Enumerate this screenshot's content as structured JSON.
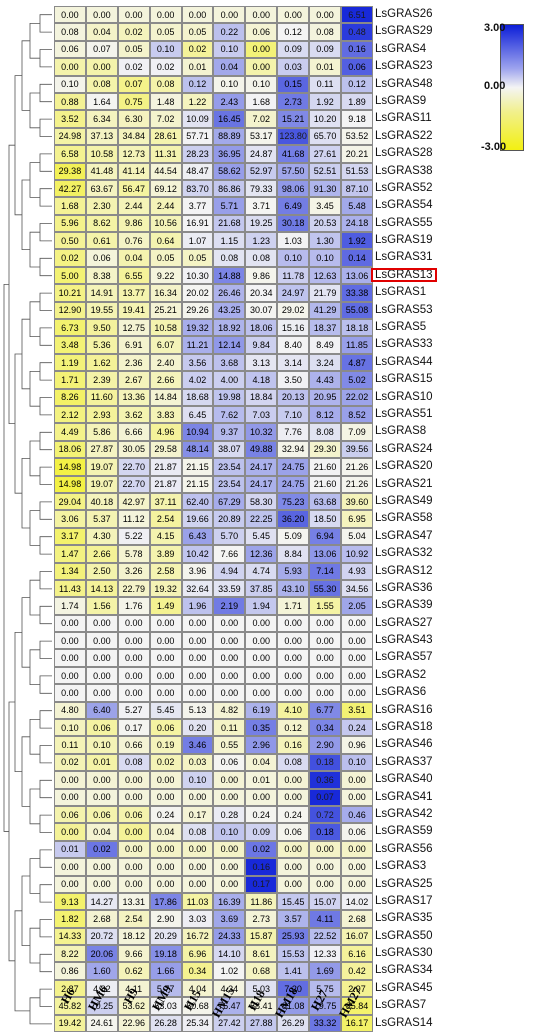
{
  "chart_data": {
    "type": "heatmap",
    "columns": [
      "H6",
      "HM6",
      "H9",
      "HM9",
      "H15",
      "HM15",
      "H18",
      "HM18",
      "H27",
      "HM27"
    ],
    "rows": [
      {
        "name": "LsGRAS26",
        "values": [
          "0.00",
          "0.00",
          "0.00",
          "0.00",
          "0.00",
          "0.00",
          "0.00",
          "0.00",
          "0.00",
          "6.51"
        ]
      },
      {
        "name": "LsGRAS29",
        "values": [
          "0.08",
          "0.04",
          "0.02",
          "0.05",
          "0.05",
          "0.22",
          "0.06",
          "0.12",
          "0.08",
          "0.48"
        ]
      },
      {
        "name": "LsGRAS4",
        "values": [
          "0.06",
          "0.07",
          "0.05",
          "0.10",
          "0.02",
          "0.10",
          "0.00",
          "0.09",
          "0.09",
          "0.16"
        ]
      },
      {
        "name": "LsGRAS23",
        "values": [
          "0.00",
          "0.00",
          "0.02",
          "0.02",
          "0.01",
          "0.04",
          "0.00",
          "0.03",
          "0.01",
          "0.06"
        ]
      },
      {
        "name": "LsGRAS48",
        "values": [
          "0.10",
          "0.08",
          "0.07",
          "0.08",
          "0.12",
          "0.10",
          "0.10",
          "0.15",
          "0.11",
          "0.12"
        ]
      },
      {
        "name": "LsGRAS9",
        "values": [
          "0.88",
          "1.64",
          "0.75",
          "1.48",
          "1.22",
          "2.43",
          "1.68",
          "2.73",
          "1.92",
          "1.89"
        ]
      },
      {
        "name": "LsGRAS11",
        "values": [
          "3.52",
          "6.34",
          "6.30",
          "7.02",
          "10.09",
          "16.45",
          "7.02",
          "15.21",
          "10.20",
          "9.18"
        ]
      },
      {
        "name": "LsGRAS22",
        "values": [
          "24.98",
          "37.13",
          "34.84",
          "28.61",
          "57.71",
          "88.89",
          "53.17",
          "123.80",
          "65.70",
          "53.52"
        ]
      },
      {
        "name": "LsGRAS28",
        "values": [
          "6.58",
          "10.58",
          "12.73",
          "11.31",
          "28.23",
          "36.95",
          "24.87",
          "41.68",
          "27.61",
          "20.21"
        ]
      },
      {
        "name": "LsGRAS38",
        "values": [
          "29.38",
          "41.48",
          "41.14",
          "44.54",
          "48.47",
          "58.62",
          "52.97",
          "57.50",
          "52.51",
          "51.53"
        ]
      },
      {
        "name": "LsGRAS52",
        "values": [
          "42.27",
          "63.67",
          "56.47",
          "69.12",
          "83.70",
          "86.86",
          "79.33",
          "98.06",
          "91.30",
          "87.10"
        ]
      },
      {
        "name": "LsGRAS54",
        "values": [
          "1.68",
          "2.30",
          "2.44",
          "2.44",
          "3.77",
          "5.71",
          "3.71",
          "6.49",
          "3.45",
          "5.48"
        ]
      },
      {
        "name": "LsGRAS55",
        "values": [
          "5.96",
          "8.62",
          "9.86",
          "10.56",
          "16.91",
          "21.68",
          "19.25",
          "30.18",
          "20.53",
          "24.18"
        ]
      },
      {
        "name": "LsGRAS19",
        "values": [
          "0.50",
          "0.61",
          "0.76",
          "0.64",
          "1.07",
          "1.15",
          "1.23",
          "1.03",
          "1.30",
          "1.92"
        ]
      },
      {
        "name": "LsGRAS31",
        "values": [
          "0.02",
          "0.06",
          "0.04",
          "0.05",
          "0.05",
          "0.08",
          "0.08",
          "0.10",
          "0.10",
          "0.14"
        ]
      },
      {
        "name": "LsGRAS13",
        "values": [
          "5.00",
          "8.38",
          "6.55",
          "9.22",
          "10.30",
          "14.88",
          "9.86",
          "11.78",
          "12.63",
          "13.06"
        ]
      },
      {
        "name": "LsGRAS1",
        "values": [
          "10.21",
          "14.91",
          "13.77",
          "16.34",
          "20.02",
          "26.46",
          "20.34",
          "24.97",
          "21.79",
          "33.38"
        ]
      },
      {
        "name": "LsGRAS53",
        "values": [
          "12.90",
          "19.55",
          "19.41",
          "25.21",
          "29.26",
          "43.25",
          "30.07",
          "29.02",
          "41.29",
          "55.08"
        ]
      },
      {
        "name": "LsGRAS5",
        "values": [
          "6.73",
          "9.50",
          "12.75",
          "10.58",
          "19.32",
          "18.92",
          "18.06",
          "15.16",
          "18.37",
          "18.18"
        ]
      },
      {
        "name": "LsGRAS33",
        "values": [
          "3.48",
          "5.36",
          "6.91",
          "6.07",
          "11.21",
          "12.14",
          "9.84",
          "8.40",
          "8.49",
          "11.85"
        ]
      },
      {
        "name": "LsGRAS44",
        "values": [
          "1.19",
          "1.62",
          "2.36",
          "2.40",
          "3.56",
          "3.68",
          "3.13",
          "3.14",
          "3.24",
          "4.87"
        ]
      },
      {
        "name": "LsGRAS15",
        "values": [
          "1.71",
          "2.39",
          "2.67",
          "2.66",
          "4.02",
          "4.00",
          "4.18",
          "3.50",
          "4.43",
          "5.02"
        ]
      },
      {
        "name": "LsGRAS10",
        "values": [
          "8.26",
          "11.60",
          "13.36",
          "14.84",
          "18.68",
          "19.98",
          "18.84",
          "20.13",
          "20.95",
          "22.02"
        ]
      },
      {
        "name": "LsGRAS51",
        "values": [
          "2.12",
          "2.93",
          "3.62",
          "3.83",
          "6.45",
          "7.62",
          "7.03",
          "7.10",
          "8.12",
          "8.52"
        ]
      },
      {
        "name": "LsGRAS8",
        "values": [
          "4.49",
          "5.86",
          "6.66",
          "4.96",
          "10.94",
          "9.37",
          "10.32",
          "7.76",
          "8.08",
          "7.09"
        ]
      },
      {
        "name": "LsGRAS24",
        "values": [
          "18.06",
          "27.87",
          "30.05",
          "29.58",
          "48.14",
          "38.07",
          "49.88",
          "32.94",
          "29.30",
          "39.56"
        ]
      },
      {
        "name": "LsGRAS20",
        "values": [
          "14.98",
          "19.07",
          "22.70",
          "21.87",
          "21.15",
          "23.54",
          "24.17",
          "24.75",
          "21.60",
          "21.26"
        ]
      },
      {
        "name": "LsGRAS21",
        "values": [
          "14.98",
          "19.07",
          "22.70",
          "21.87",
          "21.15",
          "23.54",
          "24.17",
          "24.75",
          "21.60",
          "21.26"
        ]
      },
      {
        "name": "LsGRAS49",
        "values": [
          "29.04",
          "40.18",
          "42.97",
          "37.11",
          "62.40",
          "67.29",
          "58.30",
          "75.23",
          "63.68",
          "39.60"
        ]
      },
      {
        "name": "LsGRAS58",
        "values": [
          "3.06",
          "5.37",
          "11.12",
          "2.54",
          "19.66",
          "20.89",
          "22.25",
          "36.20",
          "18.50",
          "6.95"
        ]
      },
      {
        "name": "LsGRAS47",
        "values": [
          "3.17",
          "4.30",
          "5.22",
          "4.15",
          "6.43",
          "5.70",
          "5.45",
          "5.09",
          "6.94",
          "5.04"
        ]
      },
      {
        "name": "LsGRAS32",
        "values": [
          "1.47",
          "2.66",
          "5.78",
          "3.89",
          "10.42",
          "7.66",
          "12.36",
          "8.84",
          "13.06",
          "10.92"
        ]
      },
      {
        "name": "LsGRAS12",
        "values": [
          "1.34",
          "2.50",
          "3.26",
          "2.58",
          "3.96",
          "4.94",
          "4.74",
          "5.93",
          "7.14",
          "4.93"
        ]
      },
      {
        "name": "LsGRAS36",
        "values": [
          "11.43",
          "14.13",
          "22.79",
          "19.32",
          "32.64",
          "33.59",
          "37.85",
          "43.10",
          "55.30",
          "34.56"
        ]
      },
      {
        "name": "LsGRAS39",
        "values": [
          "1.74",
          "1.56",
          "1.76",
          "1.49",
          "1.96",
          "2.19",
          "1.94",
          "1.71",
          "1.55",
          "2.05"
        ]
      },
      {
        "name": "LsGRAS27",
        "values": [
          "0.00",
          "0.00",
          "0.00",
          "0.00",
          "0.00",
          "0.00",
          "0.00",
          "0.00",
          "0.00",
          "0.00"
        ]
      },
      {
        "name": "LsGRAS43",
        "values": [
          "0.00",
          "0.00",
          "0.00",
          "0.00",
          "0.00",
          "0.00",
          "0.00",
          "0.00",
          "0.00",
          "0.00"
        ]
      },
      {
        "name": "LsGRAS57",
        "values": [
          "0.00",
          "0.00",
          "0.00",
          "0.00",
          "0.00",
          "0.00",
          "0.00",
          "0.00",
          "0.00",
          "0.00"
        ]
      },
      {
        "name": "LsGRAS2",
        "values": [
          "0.00",
          "0.00",
          "0.00",
          "0.00",
          "0.00",
          "0.00",
          "0.00",
          "0.00",
          "0.00",
          "0.00"
        ]
      },
      {
        "name": "LsGRAS6",
        "values": [
          "0.00",
          "0.00",
          "0.00",
          "0.00",
          "0.00",
          "0.00",
          "0.00",
          "0.00",
          "0.00",
          "0.00"
        ]
      },
      {
        "name": "LsGRAS16",
        "values": [
          "4.80",
          "6.40",
          "5.27",
          "5.45",
          "5.13",
          "4.82",
          "6.19",
          "4.10",
          "6.77",
          "3.51"
        ]
      },
      {
        "name": "LsGRAS18",
        "values": [
          "0.10",
          "0.06",
          "0.17",
          "0.06",
          "0.20",
          "0.11",
          "0.35",
          "0.12",
          "0.34",
          "0.24"
        ]
      },
      {
        "name": "LsGRAS46",
        "values": [
          "0.11",
          "0.10",
          "0.66",
          "0.19",
          "3.46",
          "0.55",
          "2.96",
          "0.16",
          "2.90",
          "0.96"
        ]
      },
      {
        "name": "LsGRAS37",
        "values": [
          "0.02",
          "0.01",
          "0.08",
          "0.02",
          "0.03",
          "0.06",
          "0.04",
          "0.08",
          "0.18",
          "0.10"
        ]
      },
      {
        "name": "LsGRAS40",
        "values": [
          "0.00",
          "0.00",
          "0.00",
          "0.00",
          "0.10",
          "0.00",
          "0.01",
          "0.00",
          "0.36",
          "0.00"
        ]
      },
      {
        "name": "LsGRAS41",
        "values": [
          "0.00",
          "0.00",
          "0.00",
          "0.00",
          "0.00",
          "0.00",
          "0.00",
          "0.00",
          "0.07",
          "0.00"
        ]
      },
      {
        "name": "LsGRAS42",
        "values": [
          "0.06",
          "0.06",
          "0.06",
          "0.24",
          "0.17",
          "0.28",
          "0.24",
          "0.24",
          "0.72",
          "0.46"
        ]
      },
      {
        "name": "LsGRAS59",
        "values": [
          "0.00",
          "0.04",
          "0.00",
          "0.04",
          "0.08",
          "0.10",
          "0.09",
          "0.06",
          "0.18",
          "0.06"
        ]
      },
      {
        "name": "LsGRAS56",
        "values": [
          "0.01",
          "0.02",
          "0.00",
          "0.00",
          "0.00",
          "0.00",
          "0.02",
          "0.00",
          "0.00",
          "0.00"
        ]
      },
      {
        "name": "LsGRAS3",
        "values": [
          "0.00",
          "0.00",
          "0.00",
          "0.00",
          "0.00",
          "0.00",
          "0.16",
          "0.00",
          "0.00",
          "0.00"
        ]
      },
      {
        "name": "LsGRAS25",
        "values": [
          "0.00",
          "0.00",
          "0.00",
          "0.00",
          "0.00",
          "0.00",
          "0.17",
          "0.00",
          "0.00",
          "0.00"
        ]
      },
      {
        "name": "LsGRAS17",
        "values": [
          "9.13",
          "14.27",
          "13.31",
          "17.86",
          "11.03",
          "16.39",
          "11.86",
          "15.45",
          "15.07",
          "14.02"
        ]
      },
      {
        "name": "LsGRAS35",
        "values": [
          "1.82",
          "2.68",
          "2.54",
          "2.90",
          "3.03",
          "3.69",
          "2.73",
          "3.57",
          "4.11",
          "2.68"
        ]
      },
      {
        "name": "LsGRAS50",
        "values": [
          "14.33",
          "20.72",
          "18.12",
          "20.29",
          "16.72",
          "24.33",
          "15.87",
          "25.93",
          "22.52",
          "16.07"
        ]
      },
      {
        "name": "LsGRAS30",
        "values": [
          "8.22",
          "20.06",
          "9.66",
          "19.18",
          "6.96",
          "14.10",
          "8.61",
          "15.53",
          "12.33",
          "6.16"
        ]
      },
      {
        "name": "LsGRAS34",
        "values": [
          "0.86",
          "1.60",
          "0.62",
          "1.66",
          "0.34",
          "1.02",
          "0.68",
          "1.41",
          "1.69",
          "0.42"
        ]
      },
      {
        "name": "LsGRAS45",
        "values": [
          "2.87",
          "4.82",
          "4.11",
          "5.77",
          "4.04",
          "4.34",
          "5.03",
          "7.20",
          "5.75",
          "2.97"
        ]
      },
      {
        "name": "LsGRAS7",
        "values": [
          "45.82",
          "70.25",
          "53.62",
          "63.03",
          "60.68",
          "76.47",
          "58.41",
          "81.08",
          "79.75",
          "35.84"
        ]
      },
      {
        "name": "LsGRAS14",
        "values": [
          "19.42",
          "24.61",
          "22.96",
          "26.28",
          "25.34",
          "27.42",
          "27.88",
          "26.29",
          "33.32",
          "16.17"
        ]
      }
    ],
    "highlighted_row": "LsGRAS13",
    "color_scale": {
      "min": -3,
      "mid": 0,
      "max": 3,
      "min_color": "#f3f011",
      "mid_color": "#f4f4f4",
      "max_color": "#0c1ed8"
    },
    "legend": {
      "max_label": "3.00",
      "mid_label": "0.00",
      "min_label": "-3.00",
      "placement": "top-right"
    }
  },
  "colors": {
    "highlight_box": "#e00000",
    "tree_lines": "#555555",
    "grid": "#8a8a8a"
  }
}
